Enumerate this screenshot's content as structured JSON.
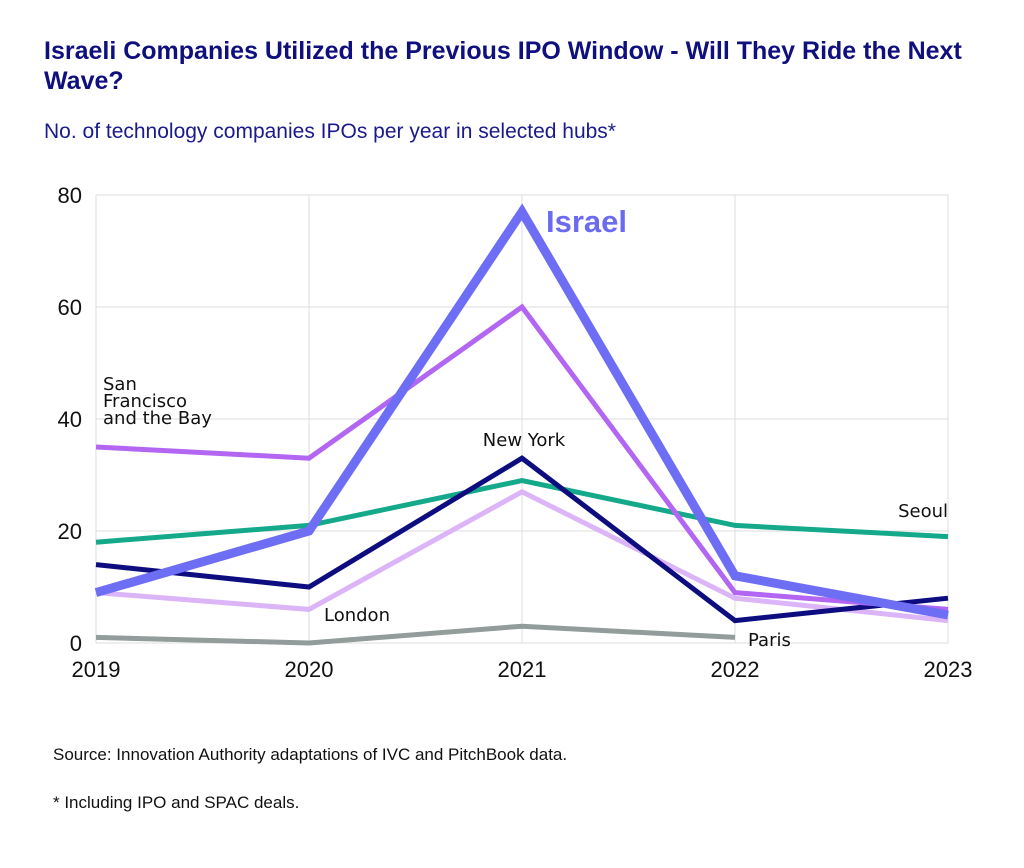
{
  "header": {
    "title": "Israeli Companies Utilized the Previous IPO Window - Will They Ride the Next Wave?",
    "subtitle": "No. of technology companies IPOs per year in selected hubs*"
  },
  "footer": {
    "source": "Source: Innovation Authority adaptations of IVC and PitchBook data.",
    "note": "* Including IPO and SPAC deals."
  },
  "chart_data": {
    "type": "line",
    "title": "Israeli Companies Utilized the Previous IPO Window - Will They Ride the Next Wave?",
    "subtitle": "No. of technology companies IPOs per year in selected hubs*",
    "xlabel": "",
    "ylabel": "",
    "x": [
      "2019",
      "2020",
      "2021",
      "2022",
      "2023"
    ],
    "ylim": [
      0,
      80
    ],
    "yticks": [
      "0",
      "20",
      "40",
      "60",
      "80"
    ],
    "grid": true,
    "legend": "inline labels",
    "series": [
      {
        "name": "Paris",
        "label": "Paris",
        "color": "#929c9a",
        "values": [
          1,
          0,
          3,
          1,
          null
        ]
      },
      {
        "name": "London",
        "label": "London",
        "color": "#dcb4f8",
        "values": [
          9,
          6,
          27,
          8,
          4
        ]
      },
      {
        "name": "Seoul",
        "label": "Seoul",
        "color": "#14a98a",
        "values": [
          18,
          21,
          29,
          21,
          19
        ]
      },
      {
        "name": "New York",
        "label": "New York",
        "color": "#0d0d80",
        "values": [
          14,
          10,
          33,
          4,
          8
        ]
      },
      {
        "name": "San Francisco and the Bay",
        "label": "San Francisco and the Bay",
        "label_lines": [
          "San",
          "Francisco",
          "and the Bay"
        ],
        "color": "#b266f2",
        "values": [
          35,
          33,
          60,
          9,
          6
        ]
      },
      {
        "name": "Israel",
        "label": "Israel",
        "color": "#6e6ef5",
        "values": [
          9,
          20,
          77,
          12,
          5
        ],
        "highlight": true
      }
    ]
  }
}
